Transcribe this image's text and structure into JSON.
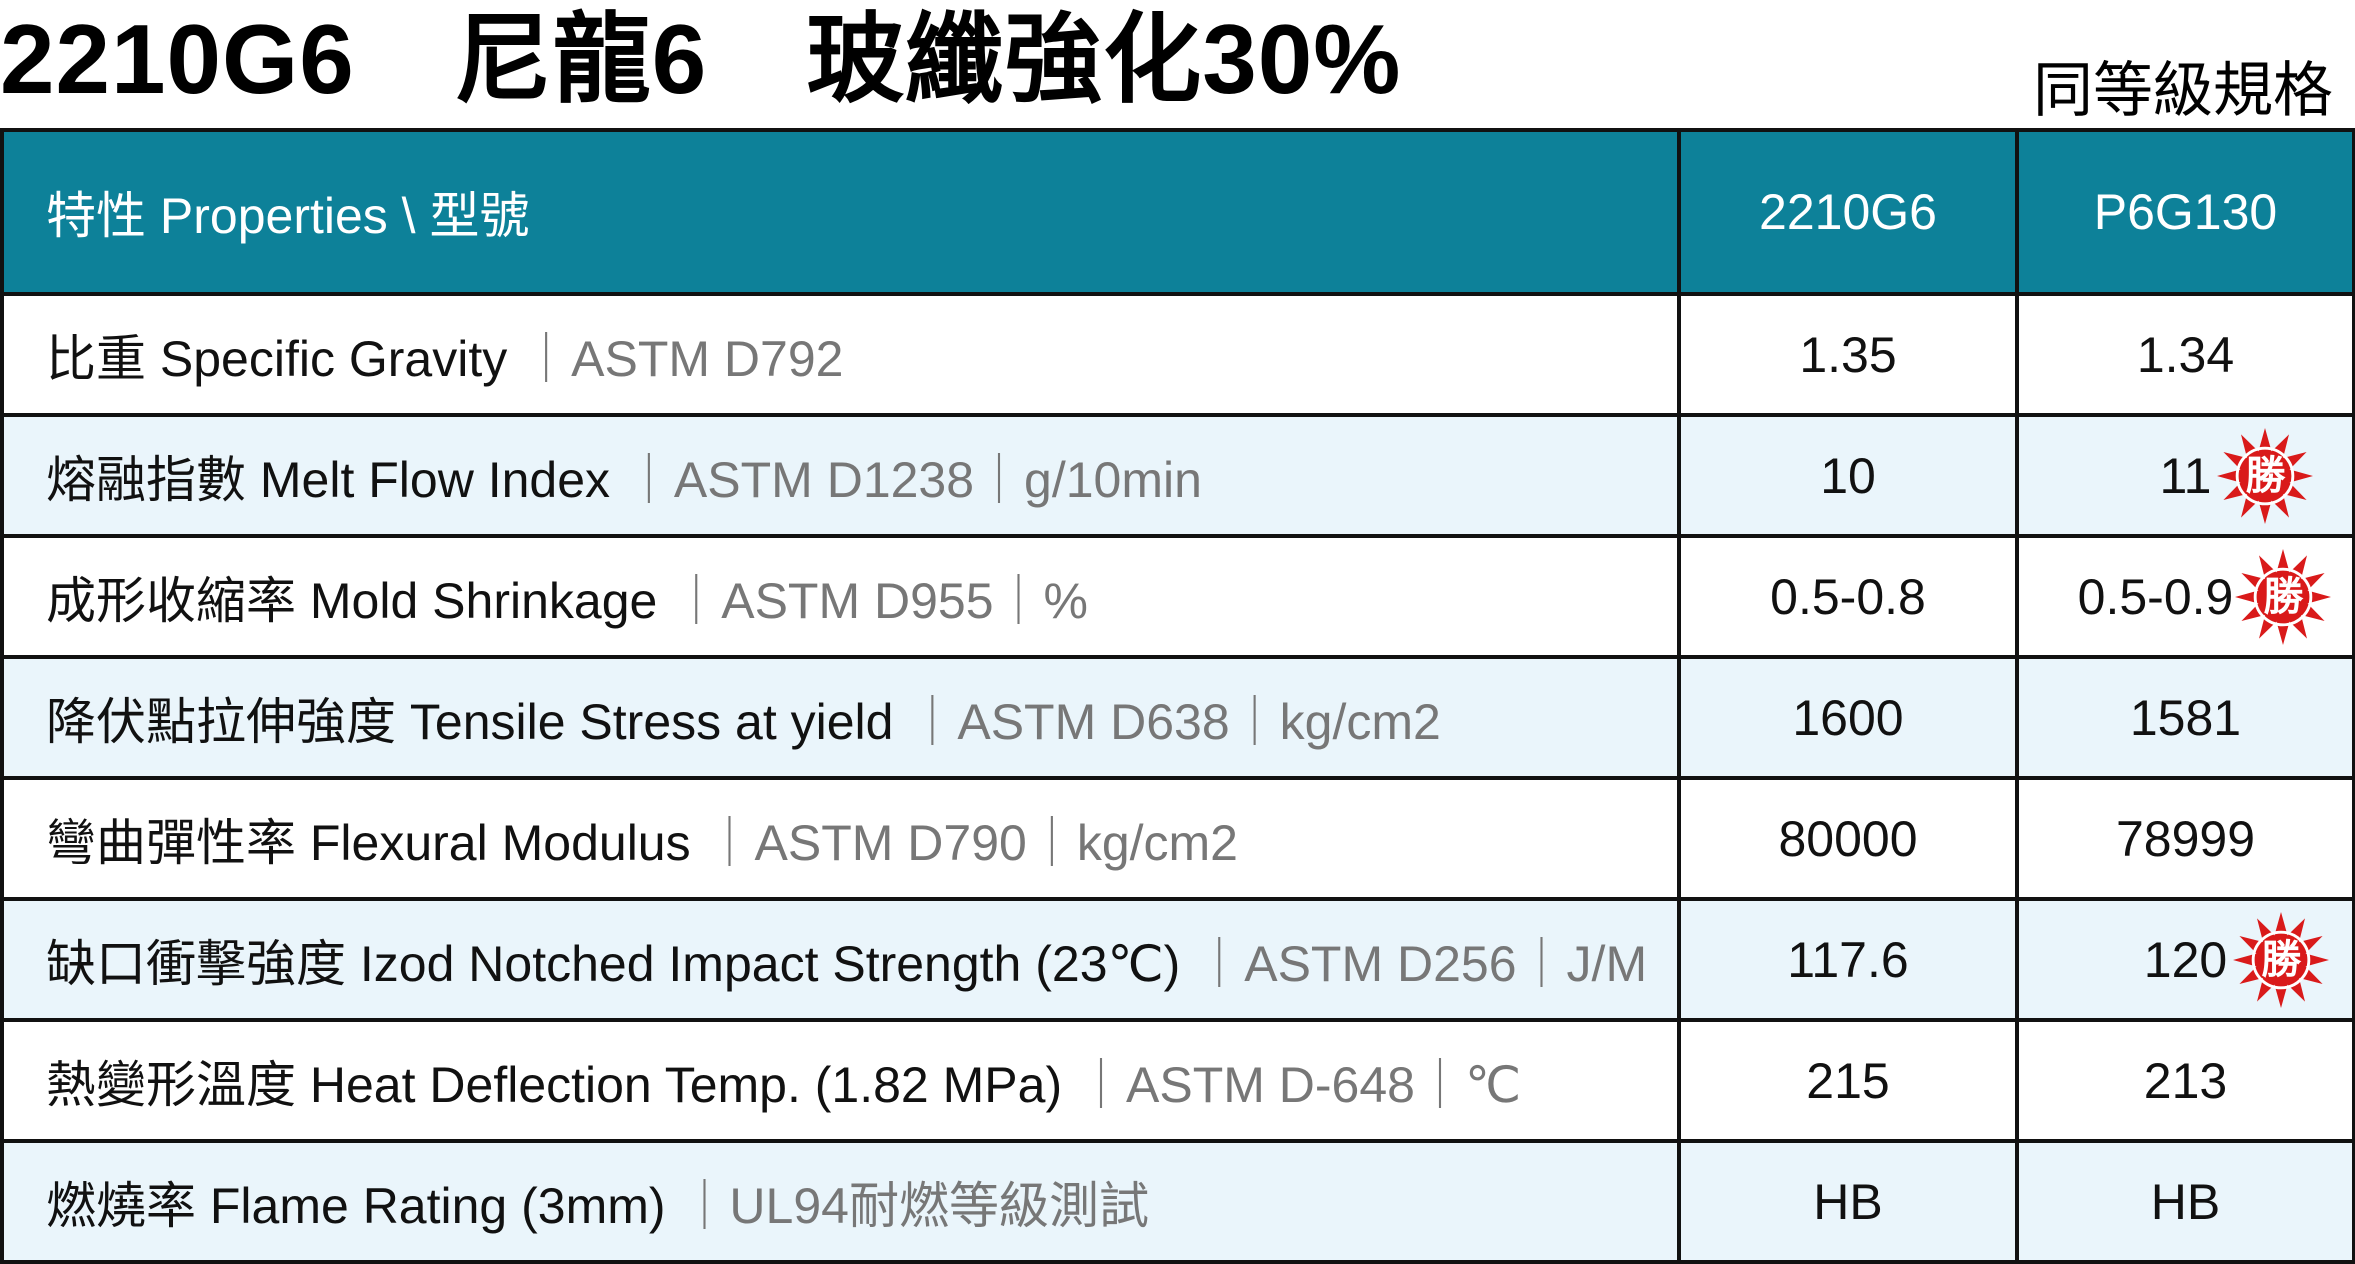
{
  "title": "2210G6　尼龍6　玻纖強化30%",
  "subtitle": "同等級規格",
  "table": {
    "header": {
      "property": "特性 Properties \\ 型號",
      "col1": "2210G6",
      "col2": "P6G130"
    },
    "rows": [
      {
        "label": "比重 Specific Gravity",
        "meta": "｜ASTM D792",
        "v1": "1.35",
        "v2": "1.34",
        "badge": ""
      },
      {
        "label": "熔融指數 Melt Flow Index",
        "meta": "｜ASTM D1238｜g/10min",
        "v1": "10",
        "v2": "11",
        "badge": "勝"
      },
      {
        "label": "成形收縮率 Mold Shrinkage",
        "meta": "｜ASTM D955｜%",
        "v1": "0.5-0.8",
        "v2": "0.5-0.9",
        "badge": "勝"
      },
      {
        "label": "降伏點拉伸強度 Tensile Stress at yield",
        "meta": "｜ASTM D638｜kg/cm2",
        "v1": "1600",
        "v2": "1581",
        "badge": ""
      },
      {
        "label": "彎曲彈性率 Flexural Modulus",
        "meta": "｜ASTM D790｜kg/cm2",
        "v1": "80000",
        "v2": "78999",
        "badge": ""
      },
      {
        "label": "缺口衝擊強度 Izod Notched Impact Strength (23℃)",
        "meta": "｜ASTM D256｜J/M",
        "v1": "117.6",
        "v2": "120",
        "badge": "勝"
      },
      {
        "label": "熱變形溫度 Heat Deflection Temp. (1.82 MPa)",
        "meta": "｜ASTM D-648｜℃",
        "v1": "215",
        "v2": "213",
        "badge": ""
      },
      {
        "label": "燃燒率 Flame Rating (3mm)",
        "meta": "｜UL94耐燃等級測試",
        "v1": "HB",
        "v2": "HB",
        "badge": ""
      }
    ]
  },
  "colors": {
    "header_bg": "#0d8199",
    "alt_row_bg": "#eaf5fb",
    "badge_red": "#d91a1a",
    "meta_text": "#777777"
  }
}
